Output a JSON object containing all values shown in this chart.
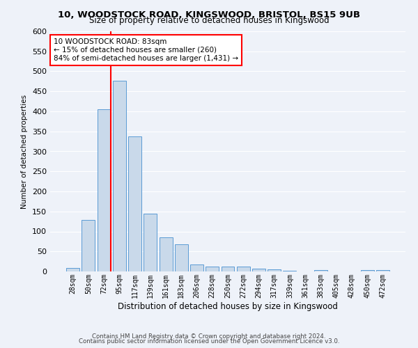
{
  "title1": "10, WOODSTOCK ROAD, KINGSWOOD, BRISTOL, BS15 9UB",
  "title2": "Size of property relative to detached houses in Kingswood",
  "xlabel": "Distribution of detached houses by size in Kingswood",
  "ylabel": "Number of detached properties",
  "bar_labels": [
    "28sqm",
    "50sqm",
    "72sqm",
    "95sqm",
    "117sqm",
    "139sqm",
    "161sqm",
    "183sqm",
    "206sqm",
    "228sqm",
    "250sqm",
    "272sqm",
    "294sqm",
    "317sqm",
    "339sqm",
    "361sqm",
    "383sqm",
    "405sqm",
    "428sqm",
    "450sqm",
    "472sqm"
  ],
  "bar_values": [
    8,
    128,
    405,
    477,
    338,
    145,
    85,
    68,
    18,
    12,
    13,
    13,
    7,
    6,
    2,
    0,
    4,
    0,
    0,
    4,
    3
  ],
  "bar_color": "#c9d9ea",
  "bar_edge_color": "#5b9bd5",
  "vline_color": "red",
  "annotation_text": "10 WOODSTOCK ROAD: 83sqm\n← 15% of detached houses are smaller (260)\n84% of semi-detached houses are larger (1,431) →",
  "annotation_box_color": "white",
  "annotation_box_edge": "red",
  "ylim": [
    0,
    600
  ],
  "yticks": [
    0,
    50,
    100,
    150,
    200,
    250,
    300,
    350,
    400,
    450,
    500,
    550,
    600
  ],
  "footer1": "Contains HM Land Registry data © Crown copyright and database right 2024.",
  "footer2": "Contains public sector information licensed under the Open Government Licence v3.0.",
  "bg_color": "#eef2f9",
  "grid_color": "white"
}
